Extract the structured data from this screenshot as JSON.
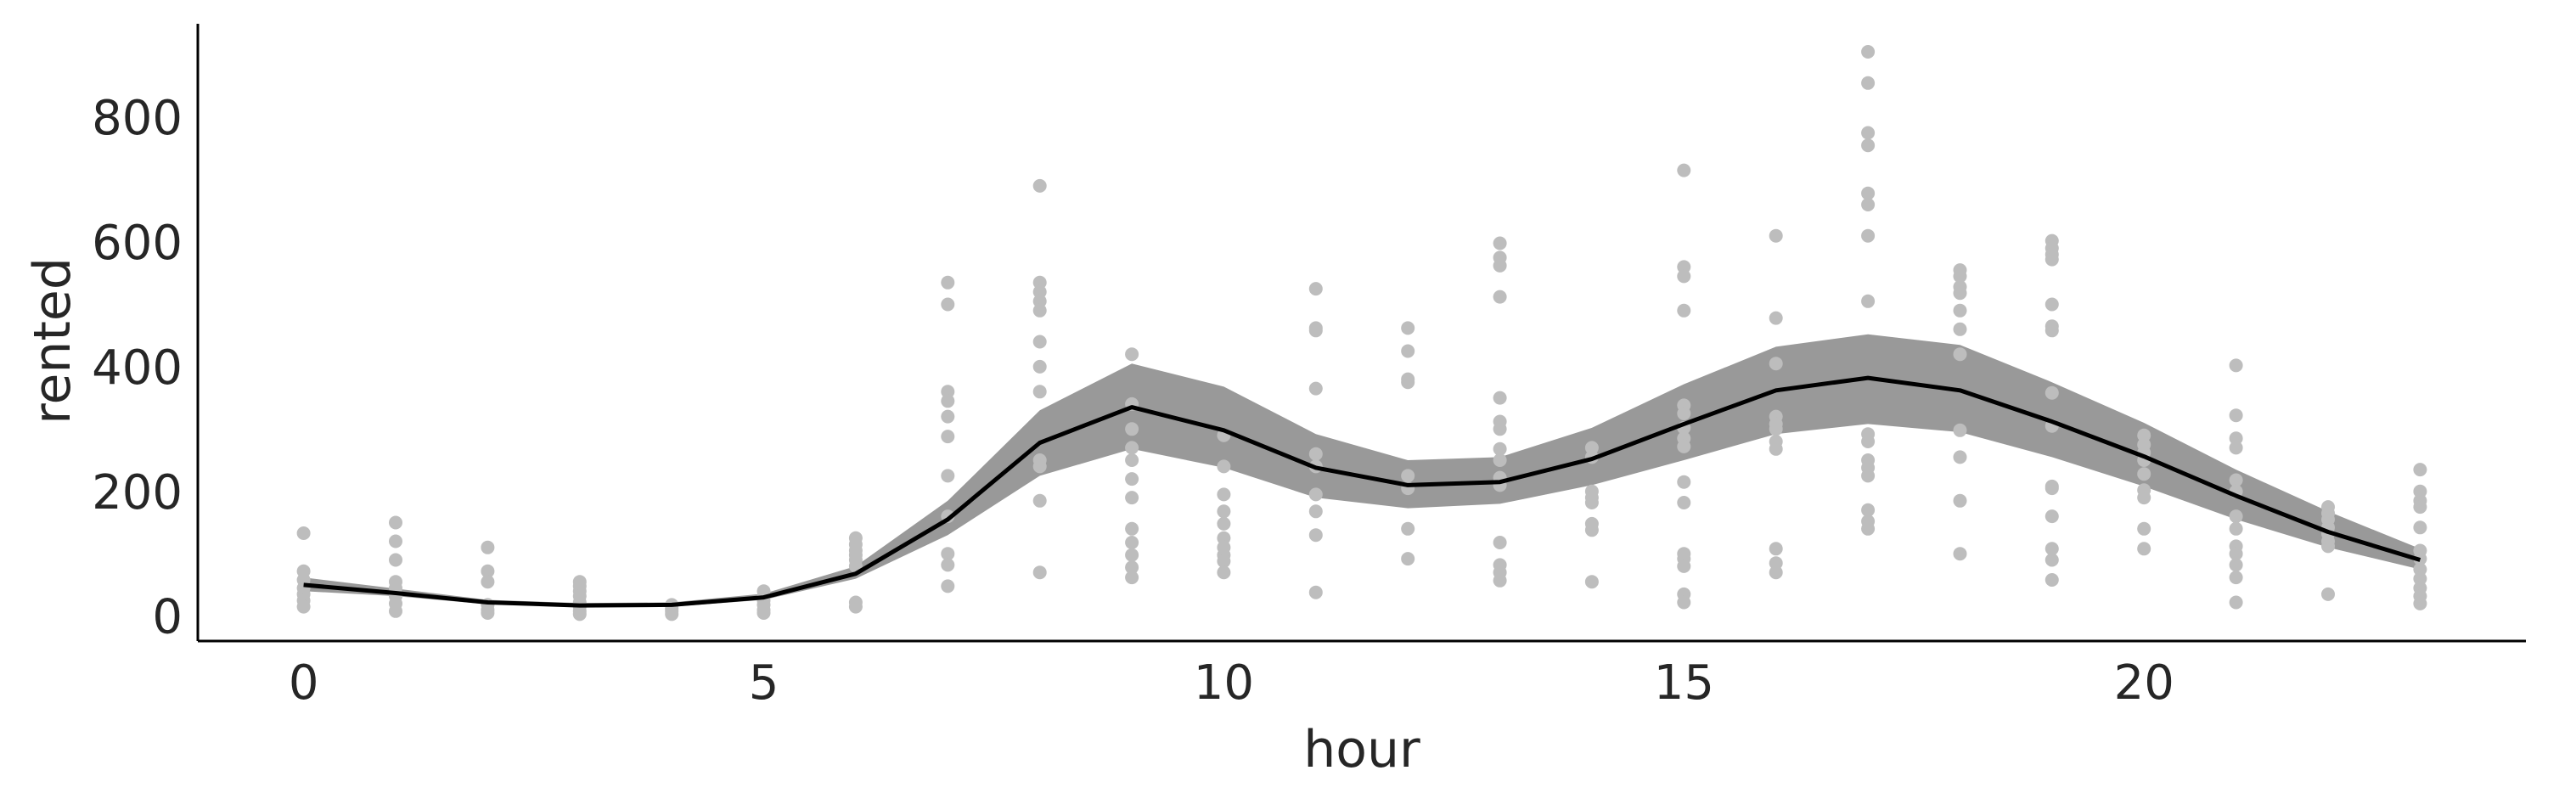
{
  "chart_data": {
    "type": "line",
    "xlabel": "hour",
    "ylabel": "rented",
    "xlim": [
      -1.15,
      24.15
    ],
    "ylim": [
      -40,
      950
    ],
    "x_ticks": [
      0,
      5,
      10,
      15,
      20
    ],
    "x_tick_labels": [
      "0",
      "5",
      "10",
      "15",
      "20"
    ],
    "y_ticks": [
      0,
      200,
      400,
      600,
      800
    ],
    "y_tick_labels": [
      "0",
      "200",
      "400",
      "600",
      "800"
    ],
    "grid": false,
    "legend": "none",
    "colors": {
      "mean_line": "#000000",
      "band": "#999999",
      "points": "#bdbdbd",
      "axis": "#000000"
    },
    "series": [
      {
        "type": "line",
        "x": [
          0,
          1,
          2,
          3,
          4,
          5,
          6,
          7,
          8,
          9,
          10,
          11,
          12,
          13,
          14,
          15,
          16,
          17,
          18,
          19,
          20,
          21,
          22,
          23
        ],
        "values": [
          50,
          37,
          22,
          17,
          18,
          30,
          68,
          155,
          278,
          335,
          298,
          238,
          210,
          215,
          252,
          308,
          362,
          382,
          362,
          312,
          256,
          193,
          135,
          90
        ]
      },
      {
        "type": "area",
        "x": [
          0,
          1,
          2,
          3,
          4,
          5,
          6,
          7,
          8,
          9,
          10,
          11,
          12,
          13,
          14,
          15,
          16,
          17,
          18,
          19,
          20,
          21,
          22,
          23
        ],
        "lower": [
          40,
          32,
          19,
          14,
          15,
          26,
          60,
          130,
          225,
          268,
          238,
          190,
          173,
          180,
          210,
          250,
          292,
          308,
          295,
          255,
          208,
          155,
          110,
          75
        ],
        "upper": [
          62,
          44,
          26,
          21,
          22,
          36,
          80,
          185,
          330,
          405,
          368,
          292,
          250,
          255,
          302,
          372,
          432,
          452,
          435,
          375,
          310,
          235,
          168,
          108
        ]
      },
      {
        "type": "scatter",
        "points": [
          [
            0,
            133
          ],
          [
            0,
            72
          ],
          [
            0,
            58
          ],
          [
            0,
            45
          ],
          [
            0,
            35
          ],
          [
            0,
            25
          ],
          [
            0,
            15
          ],
          [
            1,
            150
          ],
          [
            1,
            120
          ],
          [
            1,
            90
          ],
          [
            1,
            55
          ],
          [
            1,
            45
          ],
          [
            1,
            32
          ],
          [
            1,
            20
          ],
          [
            1,
            8
          ],
          [
            2,
            110
          ],
          [
            2,
            72
          ],
          [
            2,
            55
          ],
          [
            2,
            18
          ],
          [
            2,
            10
          ],
          [
            2,
            5
          ],
          [
            3,
            55
          ],
          [
            3,
            48
          ],
          [
            3,
            40
          ],
          [
            3,
            32
          ],
          [
            3,
            22
          ],
          [
            3,
            15
          ],
          [
            3,
            8
          ],
          [
            3,
            3
          ],
          [
            4,
            18
          ],
          [
            4,
            12
          ],
          [
            4,
            8
          ],
          [
            4,
            3
          ],
          [
            5,
            40
          ],
          [
            5,
            32
          ],
          [
            5,
            25
          ],
          [
            5,
            18
          ],
          [
            5,
            10
          ],
          [
            5,
            5
          ],
          [
            6,
            125
          ],
          [
            6,
            115
          ],
          [
            6,
            105
          ],
          [
            6,
            98
          ],
          [
            6,
            90
          ],
          [
            6,
            80
          ],
          [
            6,
            22
          ],
          [
            6,
            15
          ],
          [
            7,
            535
          ],
          [
            7,
            500
          ],
          [
            7,
            360
          ],
          [
            7,
            345
          ],
          [
            7,
            320
          ],
          [
            7,
            288
          ],
          [
            7,
            225
          ],
          [
            7,
            160
          ],
          [
            7,
            100
          ],
          [
            7,
            82
          ],
          [
            7,
            48
          ],
          [
            8,
            690
          ],
          [
            8,
            535
          ],
          [
            8,
            520
          ],
          [
            8,
            505
          ],
          [
            8,
            490
          ],
          [
            8,
            440
          ],
          [
            8,
            400
          ],
          [
            8,
            360
          ],
          [
            8,
            250
          ],
          [
            8,
            240
          ],
          [
            8,
            185
          ],
          [
            8,
            70
          ],
          [
            9,
            420
          ],
          [
            9,
            340
          ],
          [
            9,
            300
          ],
          [
            9,
            270
          ],
          [
            9,
            250
          ],
          [
            9,
            220
          ],
          [
            9,
            190
          ],
          [
            9,
            140
          ],
          [
            9,
            118
          ],
          [
            9,
            98
          ],
          [
            9,
            78
          ],
          [
            9,
            62
          ],
          [
            10,
            290
          ],
          [
            10,
            240
          ],
          [
            10,
            195
          ],
          [
            10,
            168
          ],
          [
            10,
            148
          ],
          [
            10,
            125
          ],
          [
            10,
            110
          ],
          [
            10,
            98
          ],
          [
            10,
            88
          ],
          [
            10,
            70
          ],
          [
            11,
            525
          ],
          [
            11,
            462
          ],
          [
            11,
            458
          ],
          [
            11,
            365
          ],
          [
            11,
            260
          ],
          [
            11,
            240
          ],
          [
            11,
            195
          ],
          [
            11,
            168
          ],
          [
            11,
            130
          ],
          [
            11,
            38
          ],
          [
            12,
            462
          ],
          [
            12,
            425
          ],
          [
            12,
            380
          ],
          [
            12,
            375
          ],
          [
            12,
            225
          ],
          [
            12,
            205
          ],
          [
            12,
            140
          ],
          [
            12,
            92
          ],
          [
            13,
            598
          ],
          [
            13,
            575
          ],
          [
            13,
            562
          ],
          [
            13,
            512
          ],
          [
            13,
            350
          ],
          [
            13,
            312
          ],
          [
            13,
            300
          ],
          [
            13,
            268
          ],
          [
            13,
            250
          ],
          [
            13,
            222
          ],
          [
            13,
            210
          ],
          [
            13,
            118
          ],
          [
            13,
            82
          ],
          [
            13,
            70
          ],
          [
            13,
            57
          ],
          [
            14,
            270
          ],
          [
            14,
            255
          ],
          [
            14,
            200
          ],
          [
            14,
            190
          ],
          [
            14,
            182
          ],
          [
            14,
            148
          ],
          [
            14,
            138
          ],
          [
            14,
            55
          ],
          [
            15,
            715
          ],
          [
            15,
            560
          ],
          [
            15,
            545
          ],
          [
            15,
            490
          ],
          [
            15,
            338
          ],
          [
            15,
            325
          ],
          [
            15,
            302
          ],
          [
            15,
            285
          ],
          [
            15,
            272
          ],
          [
            15,
            215
          ],
          [
            15,
            182
          ],
          [
            15,
            100
          ],
          [
            15,
            92
          ],
          [
            15,
            80
          ],
          [
            15,
            35
          ],
          [
            15,
            22
          ],
          [
            16,
            610
          ],
          [
            16,
            478
          ],
          [
            16,
            405
          ],
          [
            16,
            320
          ],
          [
            16,
            308
          ],
          [
            16,
            300
          ],
          [
            16,
            280
          ],
          [
            16,
            268
          ],
          [
            16,
            108
          ],
          [
            16,
            85
          ],
          [
            16,
            70
          ],
          [
            17,
            905
          ],
          [
            17,
            855
          ],
          [
            17,
            775
          ],
          [
            17,
            755
          ],
          [
            17,
            678
          ],
          [
            17,
            660
          ],
          [
            17,
            610
          ],
          [
            17,
            505
          ],
          [
            17,
            292
          ],
          [
            17,
            280
          ],
          [
            17,
            250
          ],
          [
            17,
            238
          ],
          [
            17,
            225
          ],
          [
            17,
            170
          ],
          [
            17,
            152
          ],
          [
            17,
            140
          ],
          [
            18,
            555
          ],
          [
            18,
            545
          ],
          [
            18,
            528
          ],
          [
            18,
            518
          ],
          [
            18,
            490
          ],
          [
            18,
            460
          ],
          [
            18,
            420
          ],
          [
            18,
            298
          ],
          [
            18,
            255
          ],
          [
            18,
            185
          ],
          [
            18,
            100
          ],
          [
            19,
            602
          ],
          [
            19,
            590
          ],
          [
            19,
            580
          ],
          [
            19,
            572
          ],
          [
            19,
            500
          ],
          [
            19,
            465
          ],
          [
            19,
            458
          ],
          [
            19,
            358
          ],
          [
            19,
            305
          ],
          [
            19,
            208
          ],
          [
            19,
            205
          ],
          [
            19,
            160
          ],
          [
            19,
            108
          ],
          [
            19,
            90
          ],
          [
            19,
            58
          ],
          [
            20,
            290
          ],
          [
            20,
            275
          ],
          [
            20,
            262
          ],
          [
            20,
            250
          ],
          [
            20,
            228
          ],
          [
            20,
            202
          ],
          [
            20,
            190
          ],
          [
            20,
            140
          ],
          [
            20,
            108
          ],
          [
            21,
            402
          ],
          [
            21,
            322
          ],
          [
            21,
            285
          ],
          [
            21,
            270
          ],
          [
            21,
            218
          ],
          [
            21,
            200
          ],
          [
            21,
            160
          ],
          [
            21,
            140
          ],
          [
            21,
            112
          ],
          [
            21,
            100
          ],
          [
            21,
            82
          ],
          [
            21,
            62
          ],
          [
            21,
            22
          ],
          [
            22,
            175
          ],
          [
            22,
            165
          ],
          [
            22,
            155
          ],
          [
            22,
            142
          ],
          [
            22,
            132
          ],
          [
            22,
            120
          ],
          [
            22,
            112
          ],
          [
            22,
            35
          ],
          [
            23,
            235
          ],
          [
            23,
            200
          ],
          [
            23,
            185
          ],
          [
            23,
            175
          ],
          [
            23,
            142
          ],
          [
            23,
            105
          ],
          [
            23,
            92
          ],
          [
            23,
            75
          ],
          [
            23,
            60
          ],
          [
            23,
            45
          ],
          [
            23,
            32
          ],
          [
            23,
            20
          ]
        ]
      }
    ]
  }
}
